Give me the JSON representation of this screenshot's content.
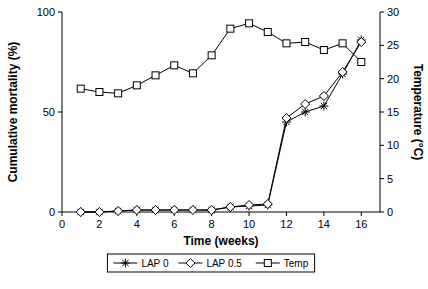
{
  "chart_data": {
    "type": "line",
    "x_label": "Time (weeks)",
    "y_label": "Cumulative mortality (%)",
    "y2_label": "Temperature (°C)",
    "x": [
      1,
      2,
      3,
      4,
      5,
      6,
      7,
      8,
      9,
      10,
      11,
      12,
      13,
      14,
      15,
      16
    ],
    "xlim": [
      0,
      17
    ],
    "xticks": [
      0,
      2,
      4,
      6,
      8,
      10,
      12,
      14,
      16
    ],
    "ylim": [
      0,
      100
    ],
    "yticks": [
      0,
      50,
      100
    ],
    "y2lim": [
      0,
      30
    ],
    "y2ticks": [
      0,
      5,
      10,
      15,
      20,
      25,
      30
    ],
    "grid": false,
    "legend": "bottom",
    "series": [
      {
        "name": "LAP 0",
        "color": "#000000",
        "marker": "star",
        "line_style": "solid",
        "values": [
          0,
          0,
          0.5,
          1,
          1,
          1,
          1,
          1,
          2.5,
          3,
          3.5,
          45,
          50,
          53,
          69,
          86
        ]
      },
      {
        "name": "LAP 0.5",
        "color": "#000000",
        "marker": "diamond",
        "line_style": "solid",
        "values": [
          0,
          0,
          0.5,
          1,
          1,
          1,
          1,
          1,
          2.5,
          3.5,
          4,
          47,
          54,
          58,
          70,
          85
        ]
      },
      {
        "name": "Temp",
        "color": "#000000",
        "marker": "square",
        "line_style": "solid",
        "axis": "y2",
        "values": [
          18.5,
          18,
          17.8,
          19,
          20.5,
          22,
          20.8,
          23.5,
          27.5,
          28.3,
          27,
          25.3,
          25.5,
          24.3,
          25.3,
          22.5
        ]
      }
    ]
  }
}
